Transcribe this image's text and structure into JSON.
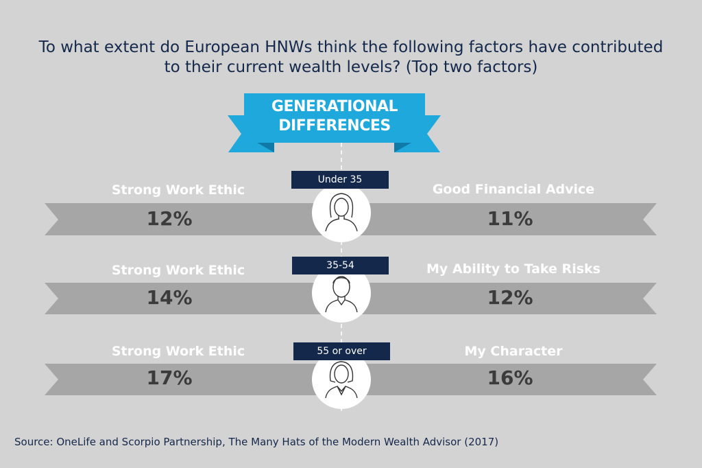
{
  "title": {
    "line1": "To what extent do European HNWs think the following factors have contributed",
    "line2": "to their current wealth levels? (Top two factors)"
  },
  "ribbon": {
    "line1": "GENERATIONAL",
    "line2": "DIFFERENCES"
  },
  "rows": [
    {
      "age": "Under 35",
      "icon": "young-woman-icon",
      "left_factor": "Strong Work Ethic",
      "left_value": "12%",
      "right_factor": "Good Financial Advice",
      "right_value": "11%"
    },
    {
      "age": "35-54",
      "icon": "man-icon",
      "left_factor": "Strong Work Ethic",
      "left_value": "14%",
      "right_factor": "My Ability to Take Risks",
      "right_value": "12%"
    },
    {
      "age": "55 or over",
      "icon": "woman-icon",
      "left_factor": "Strong Work Ethic",
      "left_value": "17%",
      "right_factor": "My Character",
      "right_value": "16%"
    }
  ],
  "source": "Source: OneLife and Scorpio Partnership, The Many Hats of the Modern Wealth Advisor (2017)",
  "colors": {
    "background": "#d3d3d3",
    "band": "#a6a6a6",
    "navy": "#14284b",
    "ribbon": "#1fa8dc",
    "ribbon_shade": "#0f79a8"
  }
}
